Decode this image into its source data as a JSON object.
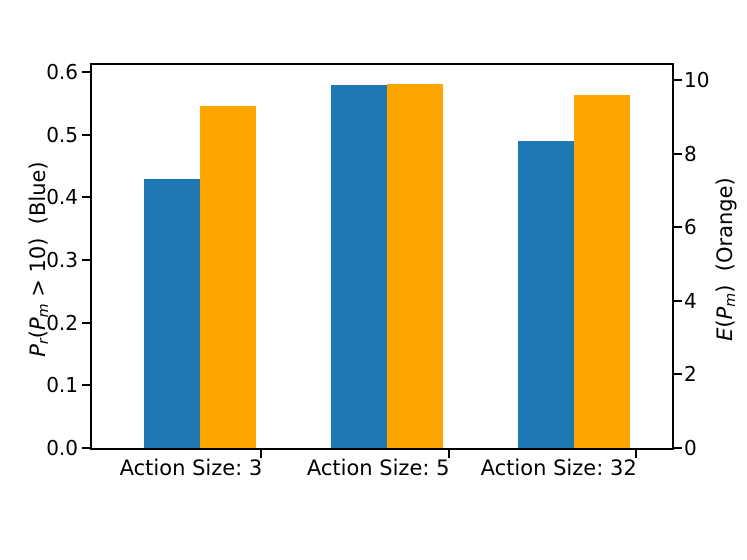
{
  "chart_data": {
    "type": "bar",
    "title": "",
    "grid": false,
    "legend": "none",
    "categories": [
      "Action Size: 3",
      "Action Size: 5",
      "Action Size: 32"
    ],
    "series": [
      {
        "name": "Pr(Pm > 10)",
        "display_axis": "left",
        "color": "#1f77b4",
        "values": [
          0.43,
          0.58,
          0.49
        ]
      },
      {
        "name": "E(Pm)",
        "display_axis": "right",
        "color": "#ffa500",
        "values": [
          9.3,
          9.9,
          9.6
        ]
      }
    ],
    "axes": {
      "left": {
        "label_plain": "Pr(Pm > 10)  (Blue)",
        "label_parts": [
          {
            "t": "P",
            "it": true
          },
          {
            "t": "r",
            "it": true,
            "sub": true
          },
          {
            "t": "(",
            "it": false
          },
          {
            "t": "P",
            "it": true
          },
          {
            "t": "m",
            "it": true,
            "sub": true
          },
          {
            "t": " > 10)",
            "it": false
          },
          {
            "t": "  (Blue)",
            "it": false
          }
        ],
        "tick_labels": [
          "0.0",
          "0.1",
          "0.2",
          "0.3",
          "0.4",
          "0.5",
          "0.6"
        ],
        "tick_values": [
          0,
          0.1,
          0.2,
          0.3,
          0.4,
          0.5,
          0.6
        ],
        "lim": [
          0,
          0.6115
        ]
      },
      "right": {
        "label_plain": "E(Pm)  (Orange)",
        "label_parts": [
          {
            "t": "E",
            "it": true
          },
          {
            "t": "(",
            "it": false
          },
          {
            "t": "P",
            "it": true
          },
          {
            "t": "m",
            "it": true,
            "sub": true
          },
          {
            "t": ")",
            "it": false
          },
          {
            "t": "  (Orange)",
            "it": false
          }
        ],
        "tick_labels": [
          "0",
          "2",
          "4",
          "6",
          "8",
          "10"
        ],
        "tick_values": [
          0,
          2,
          4,
          6,
          8,
          10
        ],
        "lim": [
          0,
          10.41
        ]
      }
    },
    "colors": {
      "blue_series": "#1f77b4",
      "orange_series": "#ffa500",
      "spine": "#000000",
      "background": "#ffffff"
    }
  }
}
